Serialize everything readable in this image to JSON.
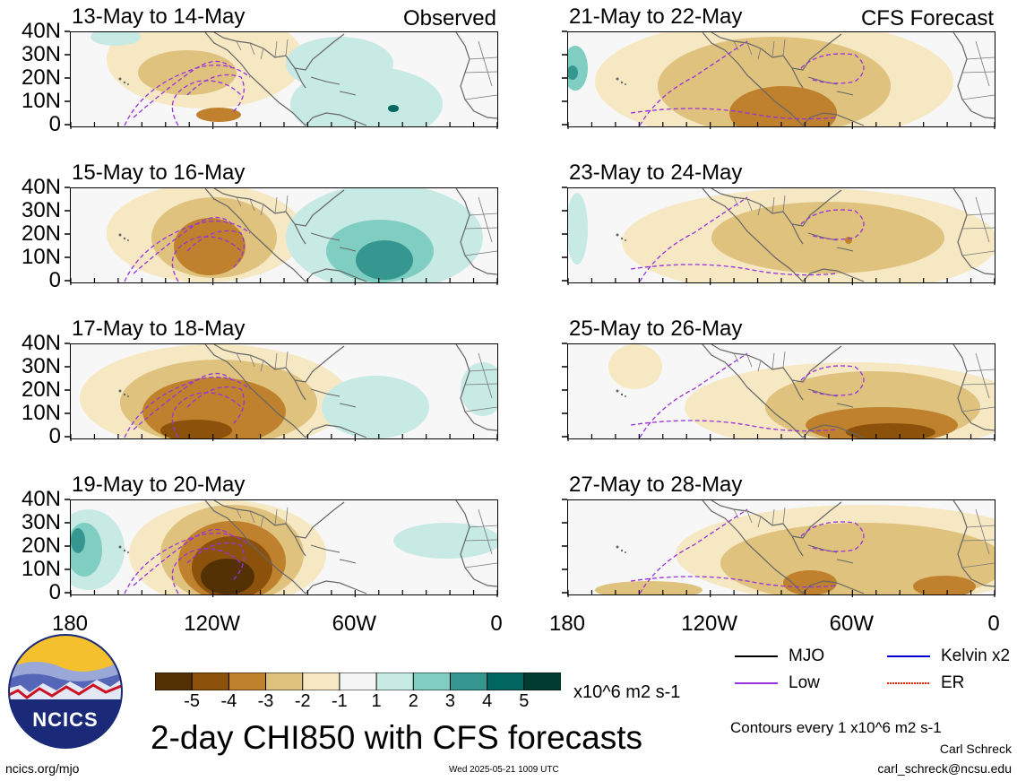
{
  "panels": [
    {
      "title": "13-May to 14-May",
      "tag": "Observed"
    },
    {
      "title": "21-May to 22-May",
      "tag": "CFS Forecast"
    },
    {
      "title": "15-May to 16-May",
      "tag": ""
    },
    {
      "title": "23-May to 24-May",
      "tag": ""
    },
    {
      "title": "17-May to 18-May",
      "tag": ""
    },
    {
      "title": "25-May to 26-May",
      "tag": ""
    },
    {
      "title": "19-May to 20-May",
      "tag": ""
    },
    {
      "title": "27-May to 28-May",
      "tag": ""
    }
  ],
  "lat_labels": [
    "40N",
    "30N",
    "20N",
    "10N",
    "0"
  ],
  "lon_labels": [
    "180",
    "120W",
    "60W",
    "0"
  ],
  "colorbar": {
    "tick_labels": [
      "-5",
      "-4",
      "-3",
      "-2",
      "-1",
      "1",
      "2",
      "3",
      "4",
      "5"
    ],
    "colors": [
      "#543005",
      "#8c510a",
      "#bf812d",
      "#dfc27d",
      "#f6e8c3",
      "#f5f5f5",
      "#c7eae5",
      "#80cdc1",
      "#35978f",
      "#01665e",
      "#003c30"
    ],
    "units": "x10^6 m2 s-1"
  },
  "legend": {
    "items": [
      {
        "label": "MJO",
        "color": "#000000",
        "style": "solid"
      },
      {
        "label": "Kelvin x2",
        "color": "#0000cc",
        "style": "solid"
      },
      {
        "label": "Low",
        "color": "#9933dd",
        "style": "solid"
      },
      {
        "label": "ER",
        "color": "#ee2200",
        "style": "dotted"
      }
    ],
    "contours_note": "Contours every 1 x10^6 m2 s-1"
  },
  "title": "2-day CHI850 with CFS forecasts",
  "logo_text": "NCICS",
  "footer": {
    "website": "ncics.org/mjo",
    "timestamp": "Wed 2025-05-21 1009 UTC",
    "author": "Carl Schreck",
    "email": "carl_schreck@ncsu.edu"
  }
}
